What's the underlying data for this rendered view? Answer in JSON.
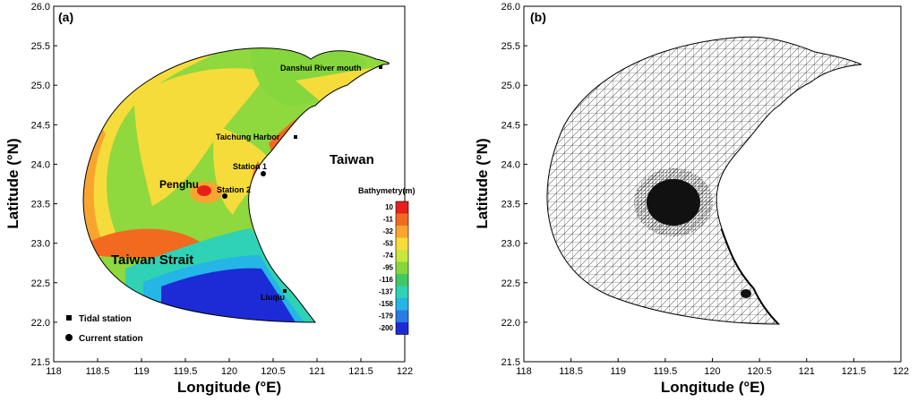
{
  "panel_a": {
    "label": "(a)",
    "x_ticks": [
      "118",
      "118.5",
      "119",
      "119.5",
      "120",
      "120.5",
      "121",
      "121.5",
      "122"
    ],
    "y_ticks": [
      "26.0",
      "25.5",
      "25.0",
      "24.5",
      "24.0",
      "23.5",
      "23.0",
      "22.5",
      "22.0",
      "21.5"
    ],
    "x_label": "Longitude (°E)",
    "y_label": "Latitude (°N)",
    "places": {
      "danshui": "Danshui River mouth",
      "taichung": "Taichung Harbor",
      "taiwan": "Taiwan",
      "station1": "Station 1",
      "station2": "Station 2",
      "penghu": "Penghu",
      "strait": "Taiwan Strait",
      "liuqiu": "Liuqiu"
    },
    "colorbar": {
      "title": "Bathymetry(m)",
      "levels": [
        "10",
        "-11",
        "-32",
        "-53",
        "-74",
        "-95",
        "-116",
        "-137",
        "-158",
        "-179",
        "-200"
      ],
      "colors": [
        "#e8201c",
        "#f26a1f",
        "#f8a530",
        "#f6dc3a",
        "#c9e63c",
        "#86d63d",
        "#3fc864",
        "#2fd2b4",
        "#23b6e6",
        "#2a7be6",
        "#1c2bd6"
      ]
    },
    "legend": {
      "tidal": "Tidal station",
      "current": "Current station"
    }
  },
  "panel_b": {
    "label": "(b)",
    "x_ticks": [
      "118",
      "118.5",
      "119",
      "119.5",
      "120",
      "120.5",
      "121",
      "121.5",
      "122"
    ],
    "y_ticks": [
      "26.0",
      "25.5",
      "25.0",
      "24.5",
      "24.0",
      "23.5",
      "23.0",
      "22.5",
      "22.0",
      "21.5"
    ],
    "x_label": "Longitude (°E)",
    "y_label": "Latitude (°N)"
  }
}
